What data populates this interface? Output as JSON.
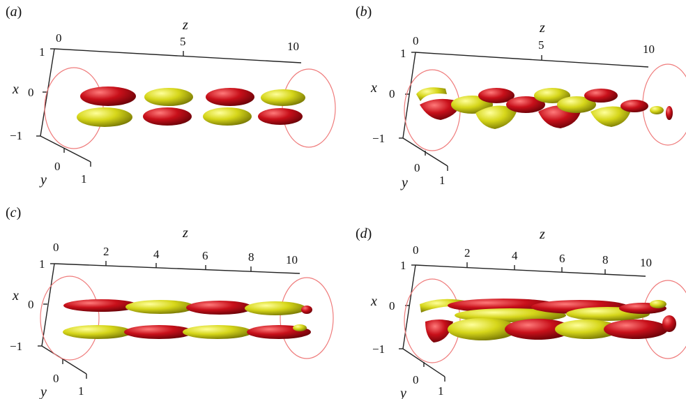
{
  "figure": {
    "panels": [
      {
        "label_open": "(",
        "label_letter": "a",
        "label_close": ")",
        "z_axis_title": "z",
        "z_ticks": [
          "0",
          "5",
          "10"
        ],
        "x_axis_title": "x",
        "x_ticks": [
          "1",
          "0",
          "−1"
        ],
        "y_axis_title": "y",
        "y_ticks": [
          "0",
          "1"
        ]
      },
      {
        "label_open": "(",
        "label_letter": "b",
        "label_close": ")",
        "z_axis_title": "z",
        "z_ticks": [
          "0",
          "5",
          "10"
        ],
        "x_axis_title": "x",
        "x_ticks": [
          "1",
          "0",
          "−1"
        ],
        "y_axis_title": "y",
        "y_ticks": [
          "0",
          "1"
        ]
      },
      {
        "label_open": "(",
        "label_letter": "c",
        "label_close": ")",
        "z_axis_title": "z",
        "z_ticks": [
          "0",
          "2",
          "4",
          "6",
          "8",
          "10"
        ],
        "x_axis_title": "x",
        "x_ticks": [
          "1",
          "0",
          "−1"
        ],
        "y_axis_title": "y",
        "y_ticks": [
          "0",
          "1"
        ]
      },
      {
        "label_open": "(",
        "label_letter": "d",
        "label_close": ")",
        "z_axis_title": "z",
        "z_ticks": [
          "0",
          "2",
          "4",
          "6",
          "8",
          "10"
        ],
        "x_axis_title": "x",
        "x_ticks": [
          "1",
          "0",
          "−1"
        ],
        "y_axis_title": "y",
        "y_ticks": [
          "0",
          "1"
        ]
      }
    ],
    "colors": {
      "red": "#c8101a",
      "red_dark": "#6e0006",
      "yellow": "#d6d61a",
      "yellow_dark": "#7a7a00",
      "circle": "#ef7b7b",
      "axis": "#222222"
    }
  }
}
